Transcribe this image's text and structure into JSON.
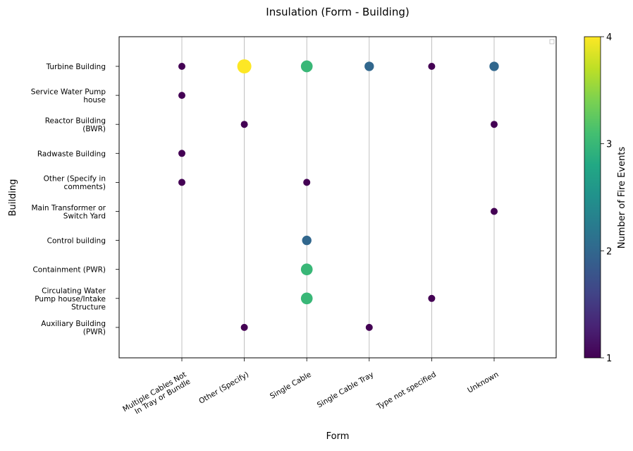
{
  "chart_data": {
    "type": "scatter",
    "title": "Insulation (Form - Building)",
    "xlabel": "Form",
    "ylabel": "Building",
    "x_categories": [
      "Multiple Cables Not In Tray or Bundle",
      "Other (Specify)",
      "Single Cable",
      "Single Cable Tray",
      "Type not specified",
      "Unknown"
    ],
    "y_categories": [
      "Turbine Building",
      "Service Water Pump house",
      "Reactor Building (BWR)",
      "Radwaste Building",
      "Other (Specify in comments)",
      "Main Transformer or Switch Yard",
      "Control building",
      "Containment (PWR)",
      "Circulating Water Pump house/Intake Structure",
      "Auxiliary Building (PWR)"
    ],
    "points": [
      {
        "x": "Multiple Cables Not In Tray or Bundle",
        "y": "Turbine Building",
        "value": 1
      },
      {
        "x": "Other (Specify)",
        "y": "Turbine Building",
        "value": 4
      },
      {
        "x": "Single Cable",
        "y": "Turbine Building",
        "value": 3
      },
      {
        "x": "Single Cable Tray",
        "y": "Turbine Building",
        "value": 2
      },
      {
        "x": "Type not specified",
        "y": "Turbine Building",
        "value": 1
      },
      {
        "x": "Unknown",
        "y": "Turbine Building",
        "value": 2
      },
      {
        "x": "Multiple Cables Not In Tray or Bundle",
        "y": "Service Water Pump house",
        "value": 1
      },
      {
        "x": "Other (Specify)",
        "y": "Reactor Building (BWR)",
        "value": 1
      },
      {
        "x": "Unknown",
        "y": "Reactor Building (BWR)",
        "value": 1
      },
      {
        "x": "Multiple Cables Not In Tray or Bundle",
        "y": "Radwaste Building",
        "value": 1
      },
      {
        "x": "Multiple Cables Not In Tray or Bundle",
        "y": "Other (Specify in comments)",
        "value": 1
      },
      {
        "x": "Single Cable",
        "y": "Other (Specify in comments)",
        "value": 1
      },
      {
        "x": "Unknown",
        "y": "Main Transformer or Switch Yard",
        "value": 1
      },
      {
        "x": "Single Cable",
        "y": "Control building",
        "value": 2
      },
      {
        "x": "Single Cable",
        "y": "Containment (PWR)",
        "value": 3
      },
      {
        "x": "Single Cable",
        "y": "Circulating Water Pump house/Intake Structure",
        "value": 3
      },
      {
        "x": "Type not specified",
        "y": "Circulating Water Pump house/Intake Structure",
        "value": 1
      },
      {
        "x": "Other (Specify)",
        "y": "Auxiliary Building (PWR)",
        "value": 1
      },
      {
        "x": "Single Cable Tray",
        "y": "Auxiliary Building (PWR)",
        "value": 1
      }
    ],
    "colorbar": {
      "label": "Number of Fire Events",
      "range": [
        1,
        4
      ],
      "ticks": [
        1,
        2,
        3,
        4
      ],
      "colormap": "viridis"
    },
    "grid": "vertical lines at x categories",
    "legend": "top-right (empty)"
  }
}
